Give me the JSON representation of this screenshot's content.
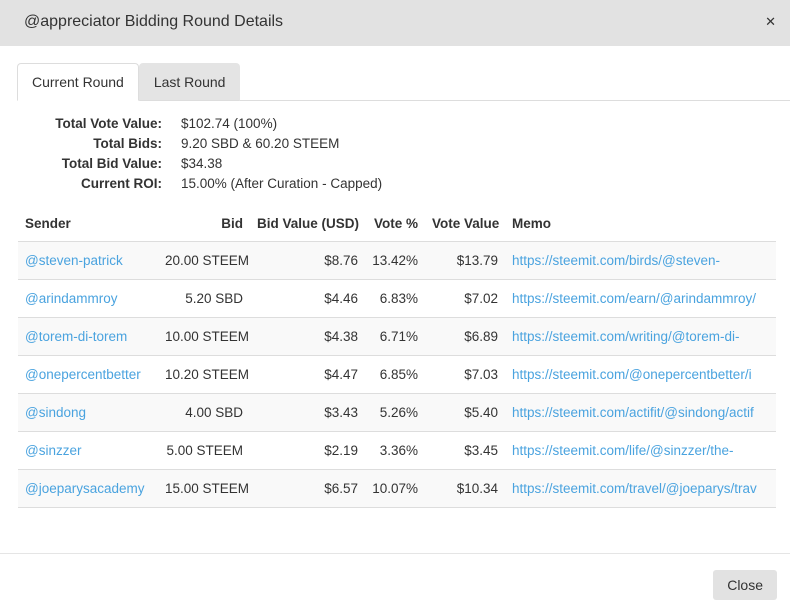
{
  "modal": {
    "title": "@appreciator Bidding Round Details",
    "close_icon": "✕"
  },
  "tabs": [
    {
      "label": "Current Round",
      "active": true
    },
    {
      "label": "Last Round",
      "active": false
    }
  ],
  "summary": {
    "rows": [
      {
        "label": "Total Vote Value:",
        "value": "$102.74 (100%)"
      },
      {
        "label": "Total Bids:",
        "value": "9.20 SBD & 60.20 STEEM"
      },
      {
        "label": "Total Bid Value:",
        "value": "$34.38"
      },
      {
        "label": "Current ROI:",
        "value": "15.00% (After Curation - Capped)"
      }
    ]
  },
  "table": {
    "columns": {
      "sender": "Sender",
      "bid": "Bid",
      "bid_value": "Bid Value (USD)",
      "vote_pct": "Vote %",
      "vote_value": "Vote Value",
      "memo": "Memo"
    },
    "rows": [
      {
        "sender": "@steven-patrick",
        "bid": "20.00 STEEM",
        "bid_value": "$8.76",
        "vote_pct": "13.42%",
        "vote_value": "$13.79",
        "memo": "https://steemit.com/birds/@steven-"
      },
      {
        "sender": "@arindammroy",
        "bid": "5.20 SBD",
        "bid_value": "$4.46",
        "vote_pct": "6.83%",
        "vote_value": "$7.02",
        "memo": "https://steemit.com/earn/@arindammroy/"
      },
      {
        "sender": "@torem-di-torem",
        "bid": "10.00 STEEM",
        "bid_value": "$4.38",
        "vote_pct": "6.71%",
        "vote_value": "$6.89",
        "memo": "https://steemit.com/writing/@torem-di-"
      },
      {
        "sender": "@onepercentbetter",
        "bid": "10.20 STEEM",
        "bid_value": "$4.47",
        "vote_pct": "6.85%",
        "vote_value": "$7.03",
        "memo": "https://steemit.com/@onepercentbetter/i"
      },
      {
        "sender": "@sindong",
        "bid": "4.00 SBD",
        "bid_value": "$3.43",
        "vote_pct": "5.26%",
        "vote_value": "$5.40",
        "memo": "https://steemit.com/actifit/@sindong/actif"
      },
      {
        "sender": "@sinzzer",
        "bid": "5.00 STEEM",
        "bid_value": "$2.19",
        "vote_pct": "3.36%",
        "vote_value": "$3.45",
        "memo": "https://steemit.com/life/@sinzzer/the-"
      },
      {
        "sender": "@joeparysacademy",
        "bid": "15.00 STEEM",
        "bid_value": "$6.57",
        "vote_pct": "10.07%",
        "vote_value": "$10.34",
        "memo": "https://steemit.com/travel/@joeparys/trav"
      }
    ]
  },
  "footer": {
    "close_label": "Close"
  },
  "colors": {
    "link": "#4aa3df",
    "header_bg": "#e2e2e2",
    "inactive_tab_bg": "#e4e4e4",
    "stripe": "#f9f9f9",
    "border": "#dddddd"
  }
}
